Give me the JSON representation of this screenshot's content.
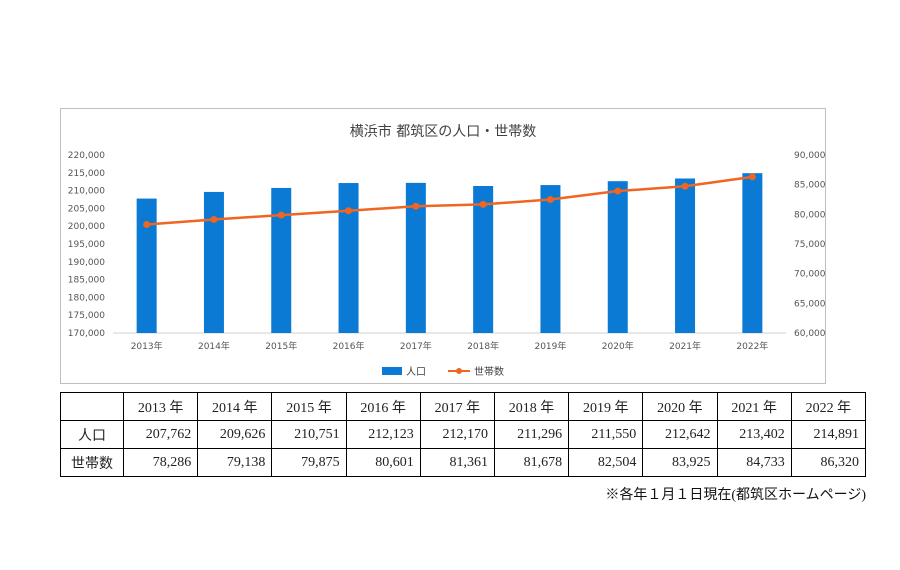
{
  "chart_data": {
    "type": "bar",
    "title": "横浜市 都筑区の人口・世帯数",
    "categories": [
      "2013年",
      "2014年",
      "2015年",
      "2016年",
      "2017年",
      "2018年",
      "2019年",
      "2020年",
      "2021年",
      "2022年"
    ],
    "series": [
      {
        "name": "人口",
        "type": "bar",
        "axis": "left",
        "color": "#0a7ad4",
        "values": [
          207762,
          209626,
          210751,
          212123,
          212170,
          211296,
          211550,
          212642,
          213402,
          214891
        ]
      },
      {
        "name": "世帯数",
        "type": "line",
        "axis": "right",
        "color": "#f06521",
        "values": [
          78286,
          79138,
          79875,
          80601,
          81361,
          81678,
          82504,
          83925,
          84733,
          86320
        ]
      }
    ],
    "ylim_left": [
      170000,
      220000
    ],
    "yticks_left": [
      "220,000",
      "215,000",
      "210,000",
      "205,000",
      "200,000",
      "195,000",
      "190,000",
      "185,000",
      "180,000",
      "175,000",
      "170,000"
    ],
    "ylim_right": [
      60000,
      90000
    ],
    "yticks_right": [
      "90,000",
      "85,000",
      "80,000",
      "75,000",
      "70,000",
      "65,000",
      "60,000"
    ],
    "legend": "bottom",
    "grid": false
  },
  "table": {
    "headers": [
      "2013 年",
      "2014 年",
      "2015 年",
      "2016 年",
      "2017 年",
      "2018 年",
      "2019 年",
      "2020 年",
      "2021 年",
      "2022 年"
    ],
    "rows": [
      {
        "label": "人口",
        "cells": [
          "207,762",
          "209,626",
          "210,751",
          "212,123",
          "212,170",
          "211,296",
          "211,550",
          "212,642",
          "213,402",
          "214,891"
        ]
      },
      {
        "label": "世帯数",
        "cells": [
          "78,286",
          "79,138",
          "79,875",
          "80,601",
          "81,361",
          "81,678",
          "82,504",
          "83,925",
          "84,733",
          "86,320"
        ]
      }
    ]
  },
  "footnote": "※各年１月１日現在(都筑区ホームページ)"
}
